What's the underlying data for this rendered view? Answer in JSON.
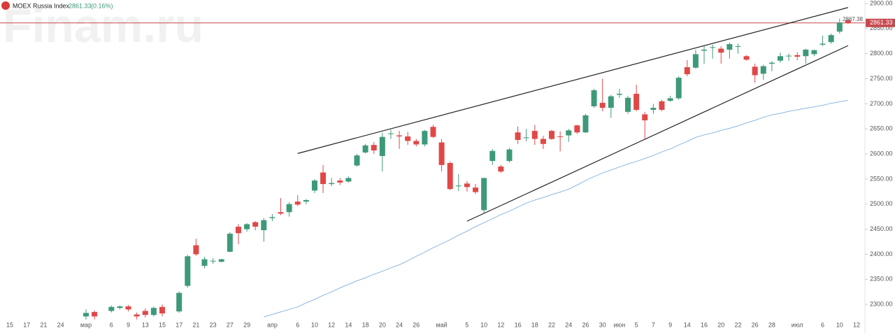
{
  "chart_data": {
    "type": "candlestick",
    "title": "MOEX Russia Index",
    "change_label": "(0.16%)",
    "watermark": "Finam.ru",
    "last_price": 2861.33,
    "high_label": 2867.38,
    "up_color": "#3d9a78",
    "down_color": "#e04848",
    "price_line_color": "#c8484e",
    "ylim": [
      2243,
      2907
    ],
    "yticks": [
      {
        "value": 2300,
        "label": "2300.00"
      },
      {
        "value": 2350,
        "label": "2350.00"
      },
      {
        "value": 2400,
        "label": "2400.00"
      },
      {
        "value": 2450,
        "label": "2450.00"
      },
      {
        "value": 2500,
        "label": "2500.00"
      },
      {
        "value": 2550,
        "label": "2550.00"
      },
      {
        "value": 2600,
        "label": "2600.00"
      },
      {
        "value": 2650,
        "label": "2650.00"
      },
      {
        "value": 2700,
        "label": "2700.00"
      },
      {
        "value": 2750,
        "label": "2750.00"
      },
      {
        "value": 2800,
        "label": "2800.00"
      },
      {
        "value": 2850,
        "label": "2850.00"
      },
      {
        "value": 2900,
        "label": "2900.00"
      }
    ],
    "categories": [
      "15",
      null,
      "17",
      null,
      "21",
      null,
      "24",
      null,
      null,
      "мар",
      null,
      null,
      "6",
      null,
      "9",
      null,
      "13",
      null,
      "15",
      null,
      "17",
      null,
      "21",
      null,
      "23",
      null,
      "27",
      null,
      "29",
      null,
      null,
      "апр",
      null,
      null,
      "6",
      null,
      "10",
      null,
      "12",
      null,
      "14",
      null,
      "18",
      null,
      "20",
      null,
      "24",
      null,
      "26",
      null,
      null,
      "май",
      null,
      null,
      "5",
      null,
      "10",
      null,
      "12",
      null,
      "16",
      null,
      "18",
      null,
      "22",
      null,
      "24",
      null,
      "26",
      null,
      "30",
      null,
      "июн",
      null,
      "5",
      null,
      "7",
      null,
      "9",
      null,
      "14",
      null,
      "16",
      null,
      "20",
      null,
      "22",
      null,
      "26",
      null,
      "28",
      null,
      null,
      "июл",
      null,
      null,
      "6",
      null,
      "10",
      null,
      "12"
    ],
    "candles": [
      null,
      null,
      null,
      null,
      null,
      null,
      null,
      null,
      null,
      [
        2276,
        2290,
        2270,
        2283
      ],
      [
        2285,
        2288,
        2270,
        2276
      ],
      null,
      [
        2287,
        2298,
        2284,
        2295
      ],
      [
        2293,
        2298,
        2290,
        2296
      ],
      [
        2296,
        2299,
        2286,
        2290
      ],
      [
        2280,
        2284,
        2270,
        2276
      ],
      [
        2287,
        2292,
        2274,
        2279
      ],
      [
        2279,
        2296,
        2276,
        2293
      ],
      [
        2295,
        2300,
        2276,
        2282
      ],
      null,
      [
        2286,
        2326,
        2283,
        2323
      ],
      [
        2337,
        2399,
        2333,
        2396
      ],
      [
        2418,
        2431,
        2397,
        2400
      ],
      [
        2377,
        2395,
        2372,
        2390
      ],
      [
        2386,
        2392,
        2381,
        2387
      ],
      [
        2385,
        2391,
        2384,
        2390
      ],
      [
        2405,
        2444,
        2404,
        2441
      ],
      [
        2455,
        2460,
        2420,
        2442
      ],
      [
        2450,
        2462,
        2445,
        2460
      ],
      [
        2464,
        2466,
        2448,
        2455
      ],
      [
        2448,
        2472,
        2425,
        2468
      ],
      [
        2472,
        2480,
        2466,
        2474
      ],
      [
        2484,
        2512,
        2478,
        2481
      ],
      [
        2484,
        2504,
        2475,
        2500
      ],
      [
        2505,
        2518,
        2496,
        2499
      ],
      [
        2505,
        2510,
        2500,
        2508
      ],
      [
        2527,
        2550,
        2522,
        2547
      ],
      [
        2563,
        2578,
        2522,
        2540
      ],
      [
        2540,
        2552,
        2536,
        2542
      ],
      [
        2547,
        2552,
        2538,
        2543
      ],
      [
        2545,
        2555,
        2543,
        2552
      ],
      [
        2577,
        2600,
        2575,
        2597
      ],
      [
        2603,
        2620,
        2601,
        2617
      ],
      [
        2618,
        2624,
        2600,
        2607
      ],
      [
        2596,
        2642,
        2565,
        2634
      ],
      [
        2640,
        2648,
        2630,
        2641
      ],
      [
        2637,
        2646,
        2610,
        2635
      ],
      [
        2635,
        2644,
        2618,
        2626
      ],
      [
        2626,
        2630,
        2615,
        2619
      ],
      [
        2619,
        2648,
        2615,
        2646
      ],
      [
        2654,
        2658,
        2632,
        2634
      ],
      [
        2623,
        2630,
        2565,
        2578
      ],
      [
        2582,
        2585,
        2528,
        2530
      ],
      [
        2536,
        2560,
        2526,
        2537
      ],
      [
        2541,
        2546,
        2525,
        2534
      ],
      [
        2533,
        2540,
        2520,
        2524
      ],
      [
        2488,
        2553,
        2482,
        2552
      ],
      [
        2586,
        2610,
        2578,
        2606
      ],
      [
        2575,
        2578,
        2562,
        2565
      ],
      [
        2586,
        2612,
        2583,
        2609
      ],
      [
        2643,
        2655,
        2620,
        2628
      ],
      [
        2632,
        2650,
        2625,
        2633
      ],
      [
        2646,
        2658,
        2618,
        2630
      ],
      [
        2630,
        2636,
        2610,
        2620
      ],
      [
        2646,
        2648,
        2628,
        2630
      ],
      [
        2635,
        2645,
        2605,
        2634
      ],
      [
        2637,
        2650,
        2624,
        2647
      ],
      [
        2657,
        2658,
        2640,
        2643
      ],
      [
        2643,
        2680,
        2642,
        2677
      ],
      [
        2695,
        2730,
        2692,
        2727
      ],
      [
        2702,
        2750,
        2685,
        2692
      ],
      [
        2692,
        2718,
        2672,
        2715
      ],
      [
        2718,
        2730,
        2712,
        2720
      ],
      [
        2684,
        2716,
        2680,
        2712
      ],
      [
        2720,
        2738,
        2685,
        2688
      ],
      [
        2679,
        2684,
        2630,
        2667
      ],
      [
        2688,
        2700,
        2680,
        2692
      ],
      [
        2705,
        2708,
        2685,
        2688
      ],
      [
        2706,
        2716,
        2704,
        2711
      ],
      [
        2711,
        2755,
        2708,
        2752
      ],
      [
        2773,
        2787,
        2755,
        2759
      ],
      [
        2772,
        2808,
        2770,
        2799
      ],
      [
        2806,
        2815,
        2780,
        2808
      ],
      [
        2812,
        2818,
        2790,
        2813
      ],
      [
        2810,
        2815,
        2780,
        2802
      ],
      [
        2808,
        2822,
        2790,
        2819
      ],
      [
        2814,
        2820,
        2800,
        2815
      ],
      [
        2795,
        2797,
        2786,
        2788
      ],
      [
        2774,
        2780,
        2742,
        2757
      ],
      [
        2760,
        2778,
        2748,
        2775
      ],
      [
        2780,
        2785,
        2765,
        2782
      ],
      [
        2786,
        2802,
        2782,
        2795
      ],
      [
        2795,
        2800,
        2786,
        2796
      ],
      [
        2797,
        2803,
        2787,
        2794
      ],
      [
        2795,
        2810,
        2780,
        2808
      ],
      [
        2799,
        2808,
        2795,
        2807
      ],
      [
        2818,
        2836,
        2815,
        2820
      ],
      [
        2823,
        2840,
        2820,
        2837
      ],
      [
        2844,
        2870,
        2840,
        2862
      ],
      [
        2867,
        2868,
        2859,
        2861.33
      ],
      null
    ],
    "ma": {
      "color": "#8cb8e0",
      "values": [
        null,
        null,
        null,
        null,
        null,
        null,
        null,
        null,
        null,
        null,
        null,
        null,
        null,
        null,
        null,
        null,
        null,
        null,
        null,
        null,
        null,
        null,
        null,
        null,
        null,
        null,
        null,
        null,
        null,
        null,
        2275,
        2280,
        2285,
        2290,
        2295,
        2303,
        2310,
        2318,
        2325,
        2333,
        2340,
        2347,
        2353,
        2360,
        2366,
        2373,
        2379,
        2387,
        2396,
        2404,
        2413,
        2421,
        2429,
        2438,
        2446,
        2455,
        2463,
        2471,
        2479,
        2486,
        2494,
        2502,
        2508,
        2513,
        2519,
        2524,
        2530,
        2538,
        2547,
        2555,
        2562,
        2568,
        2574,
        2580,
        2585,
        2591,
        2597,
        2604,
        2610,
        2618,
        2625,
        2633,
        2638,
        2642,
        2647,
        2651,
        2656,
        2662,
        2667,
        2673,
        2678,
        2681,
        2685,
        2688,
        2691,
        2694,
        2697,
        2701,
        2704,
        2707,
        null
      ]
    },
    "trendlines": [
      {
        "x": [
          34,
          99
        ],
        "values": [
          2601,
          2892
        ]
      },
      {
        "x": [
          54,
          99
        ],
        "values": [
          2466,
          2816
        ]
      }
    ]
  }
}
